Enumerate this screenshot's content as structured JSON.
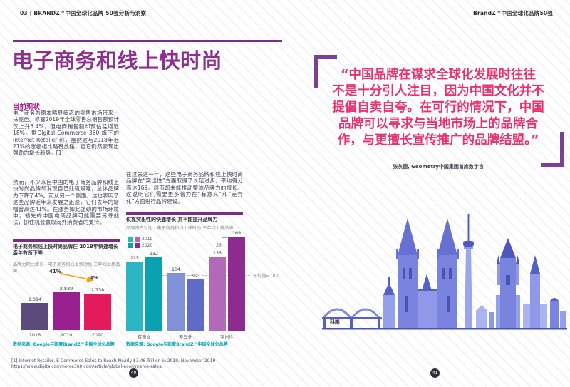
{
  "header": {
    "left": "03 | BRANDZ™中国全球化品牌 50强分析与洞察",
    "right": "BrandZ™中国全球化品牌50强"
  },
  "colors": {
    "accent_purple": "#7d2b8b",
    "title_purple": "#8e2f90",
    "quote_pink": "#e8326e",
    "source_teal": "#00a0b2",
    "arrow_orange": "#f2a10e"
  },
  "left_page": {
    "title": "电子商务和线上快时尚",
    "section_heading": "当前现状",
    "paragraphs": {
      "col1_p1": "电子商务为原本略显疲态的零售市场带来一抹亮色。尽管2019年全球零售总销售额预计仅上升3.4%，但电商销售额却预估猛增近18%。据Digital Commerce 360 旗下的Internet Retailer 称，虽然这与2018年近21%的涨幅相比略有放缓，但它仍然表现出强劲的增长趋势。[1]",
      "col1_p2": "然而，不少来自中国的电子商务品牌和线上快时尚品牌却发现自己处境艰难，总体品牌力下降了4%。而从另一个侧面，这也表明了这些品牌近年来发展之迅速，它们去年的增幅曾高达41%。在涨势如此强劲的市场环境中，领先的中国电商品牌可能需要另寻他法，抓住机会赢取海外消费者的支持。",
      "col2_p1": "在过去这一年，这些电子商务品牌和线上快时尚品牌在“突出性”方面取得了长足进步，平均得分高达169。然而却未能推动整体品牌力的增长。这说明它们需要更多着力在“有意义”和“差异化”方面进行品牌建设。"
    },
    "footnote": [
      "[1] Internet Retailer, E-Commerce Sales to Reach Nearly $3.46 Trillion in 2019, November 2019",
      "https://www.digitalcommerce360.com/article/global-ecommerce-sales/"
    ],
    "page_number": "40"
  },
  "right_page": {
    "quote_lines": [
      "“中国品牌在谋求全球化发展时往往",
      "不是十分引人注目，因为中国文化并不",
      "提倡自卖自夸。在可行的情况下，中国",
      "品牌可以寻求与当地市场上的品牌合",
      "作，与更擅长宣传推广的品牌结盟。”"
    ],
    "attribution": "张灰德, Geometry中国集团首席数字官",
    "city_label": "科隆",
    "page_number": "41"
  },
  "chart_data": [
    {
      "type": "bar",
      "title_lines": [
        "电子商务和线上快时尚品牌在 2019年快速增长后",
        "今年有所下降"
      ],
      "subtitle": "品牌力同比增长 - 电子商务和线上快时尚 三年均上榜品牌",
      "categories": [
        "2018",
        "2019",
        "2020"
      ],
      "values": [
        2014,
        2839,
        2738
      ],
      "value_labels": [
        "2,014",
        "2,839",
        "2,738"
      ],
      "growth_labels": [
        "41%",
        "-4%"
      ],
      "colors": [
        "#5d4a7d",
        "#98218f",
        "#e31a5b"
      ],
      "grid": false,
      "source": "数据来源: Google与凯度BrandZ™中国全球化品牌"
    },
    {
      "type": "bar",
      "title": "仅靠突出性的快速增长 并不能提升品牌力",
      "subtitle": "品牌资产对比 - 电子商务和线上快时尚 三年均上榜品牌",
      "categories": [
        "有意义",
        "差异化",
        "突出性"
      ],
      "series": [
        {
          "name": "2019",
          "values": [
            125,
            104,
            133
          ]
        },
        {
          "name": "2020",
          "values": [
            132,
            92,
            169
          ]
        }
      ],
      "palette": [
        [
          "#2cb6c4",
          "#8191d8",
          "#b369b9"
        ],
        [
          "#0aa2b3",
          "#5e6cc8",
          "#8d2b90"
        ]
      ],
      "average_line": {
        "value": 100,
        "label": "平均值=100"
      },
      "difference_label": "36",
      "legend_position": "top-left",
      "grid": false,
      "source": "数据来源: Google与凯度BrandZ™中国全球化品牌"
    }
  ]
}
